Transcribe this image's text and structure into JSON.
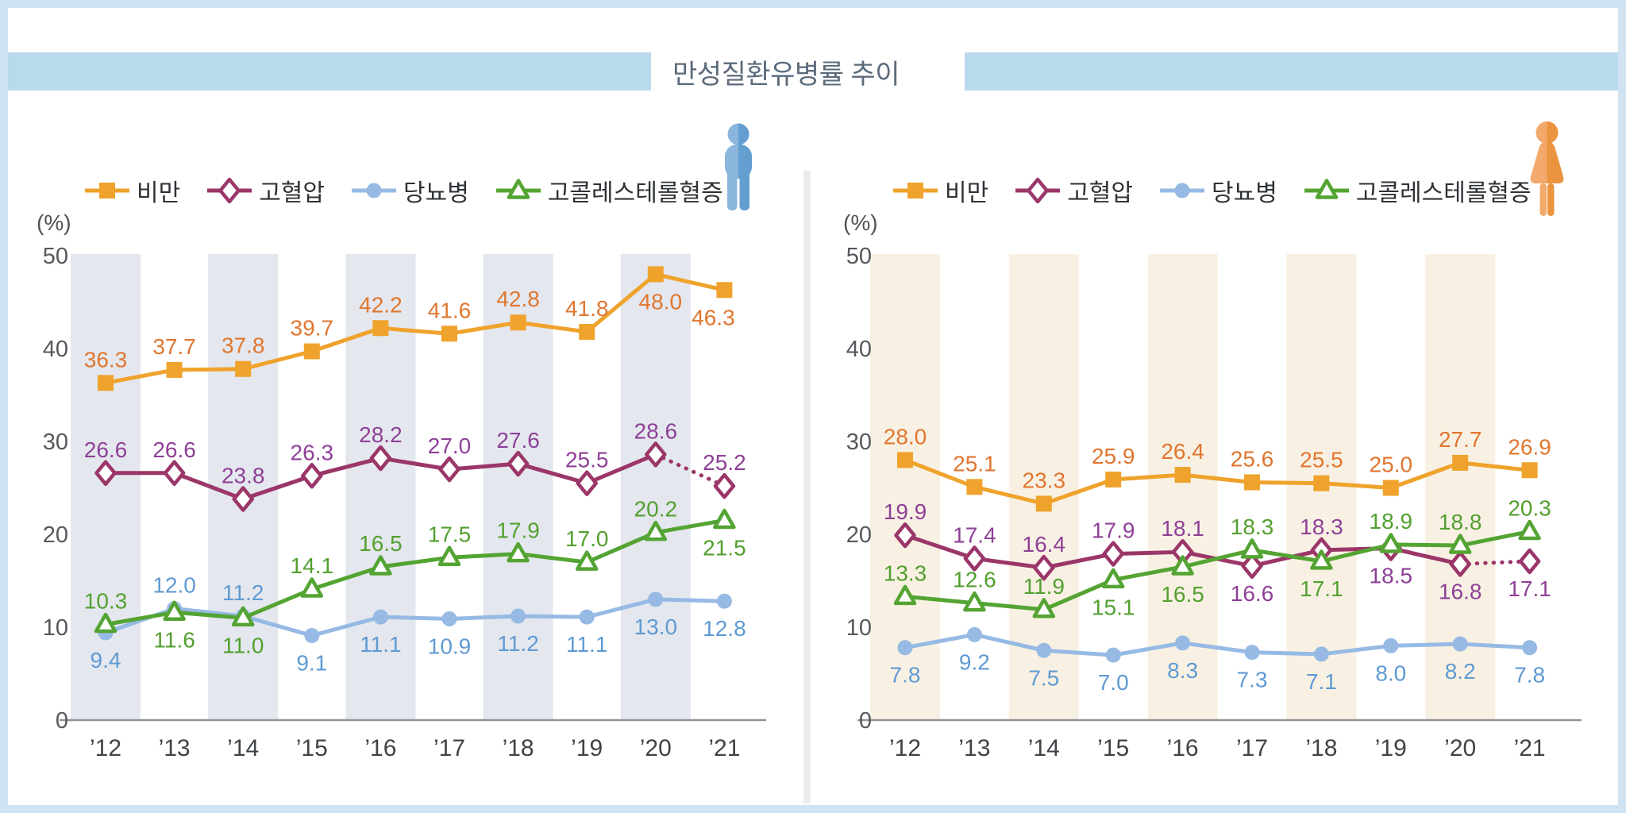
{
  "title": "만성질환유병률 추이",
  "legend": [
    {
      "label": "비만"
    },
    {
      "label": "고혈압"
    },
    {
      "label": "당뇨병"
    },
    {
      "label": "고콜레스테롤혈증"
    }
  ],
  "colors": {
    "title_bar": "#b9d9ec",
    "title_text": "#5b6b7b",
    "page_border": "#d0e3f2",
    "male_band": "#e4e7ee",
    "female_band": "#f8f1e3",
    "obesity_line": "#efa32c",
    "obesity_label": "#e0762f",
    "htn_line": "#9b3669",
    "htn_label": "#8e4097",
    "dm_line": "#96bae4",
    "dm_label": "#5f9ad3",
    "chol_line": "#54a433",
    "chol_label": "#53a030",
    "axis_line": "#909396",
    "tick_text": "#55585c",
    "year_text": "#3f4347",
    "male_icon_light": "#8ab5dd",
    "male_icon_dark": "#649ed1",
    "female_icon_light": "#f3a96b",
    "female_icon_dark": "#eb9440"
  },
  "chart_data": [
    {
      "type": "line",
      "panel": "male",
      "ylabel": "(%)",
      "ylim": [
        0,
        50
      ],
      "y_ticks": [
        50,
        40,
        30,
        20,
        10,
        0
      ],
      "x": [
        "’12",
        "’13",
        "’14",
        "’15",
        "’16",
        "’17",
        "’18",
        "’19",
        "’20",
        "’21"
      ],
      "series": [
        {
          "name": "비만",
          "values": [
            36.3,
            37.7,
            37.8,
            39.7,
            42.2,
            41.6,
            42.8,
            41.8,
            48.0,
            46.3
          ]
        },
        {
          "name": "고혈압",
          "values": [
            26.6,
            26.6,
            23.8,
            26.3,
            28.2,
            27.0,
            27.6,
            25.5,
            28.6,
            25.2
          ],
          "last_segment_dotted": true
        },
        {
          "name": "당뇨병",
          "values": [
            9.4,
            12.0,
            11.2,
            9.1,
            11.1,
            10.9,
            11.2,
            11.1,
            13.0,
            12.8
          ]
        },
        {
          "name": "고콜레스테롤혈증",
          "values": [
            10.3,
            11.6,
            11.0,
            14.1,
            16.5,
            17.5,
            17.9,
            17.0,
            20.2,
            21.5
          ]
        }
      ]
    },
    {
      "type": "line",
      "panel": "female",
      "ylabel": "(%)",
      "ylim": [
        0,
        50
      ],
      "y_ticks": [
        50,
        40,
        30,
        20,
        10,
        0
      ],
      "x": [
        "’12",
        "’13",
        "’14",
        "’15",
        "’16",
        "’17",
        "’18",
        "’19",
        "’20",
        "’21"
      ],
      "series": [
        {
          "name": "비만",
          "values": [
            28.0,
            25.1,
            23.3,
            25.9,
            26.4,
            25.6,
            25.5,
            25.0,
            27.7,
            26.9
          ]
        },
        {
          "name": "고혈압",
          "values": [
            19.9,
            17.4,
            16.4,
            17.9,
            18.1,
            16.6,
            18.3,
            18.5,
            16.8,
            17.1
          ],
          "last_segment_dotted": true
        },
        {
          "name": "당뇨병",
          "values": [
            7.8,
            9.2,
            7.5,
            7.0,
            8.3,
            7.3,
            7.1,
            8.0,
            8.2,
            7.8
          ]
        },
        {
          "name": "고콜레스테롤혈증",
          "values": [
            13.3,
            12.6,
            11.9,
            15.1,
            16.5,
            18.3,
            17.1,
            18.9,
            18.8,
            20.3
          ]
        }
      ]
    }
  ]
}
